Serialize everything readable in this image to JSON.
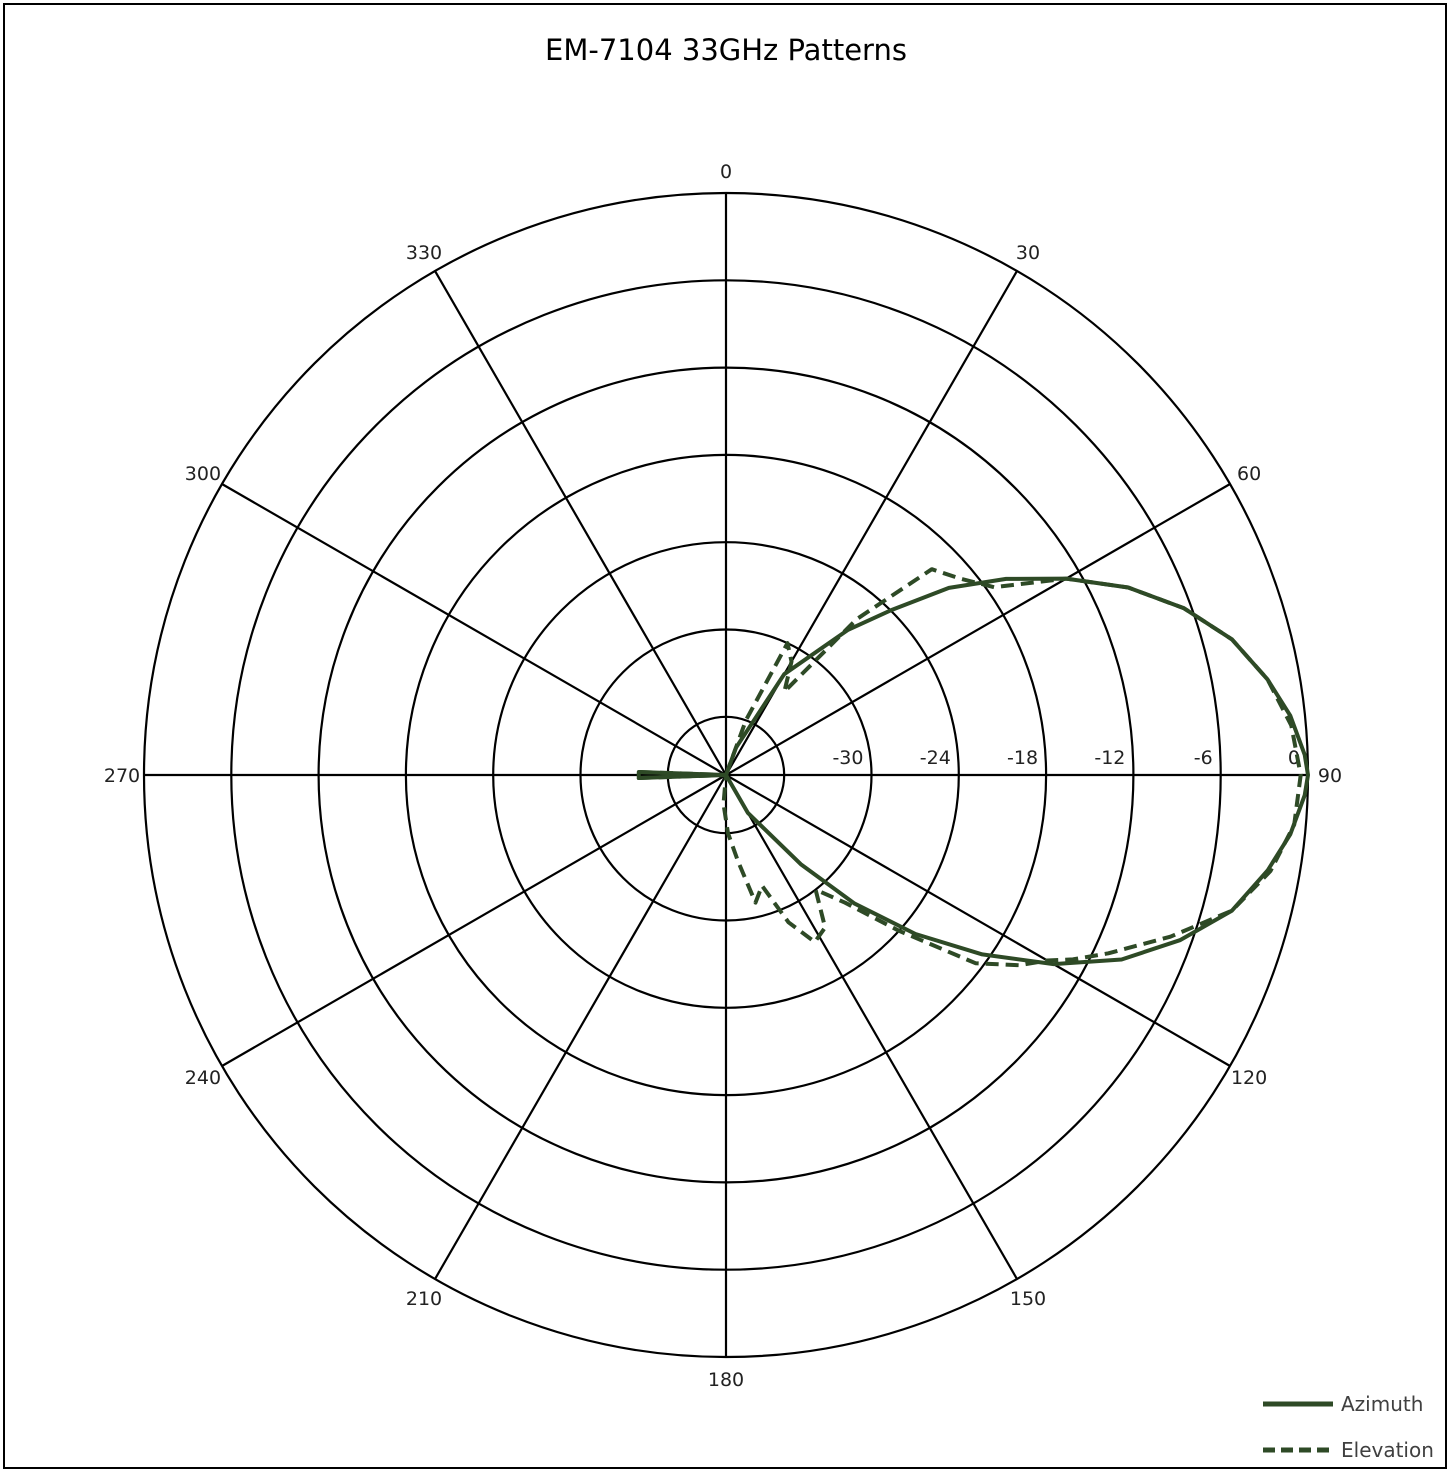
{
  "chart_data": {
    "type": "line",
    "subtype": "polar",
    "title": "EM-7104 33GHz Patterns",
    "angle_labels": [
      "0",
      "30",
      "60",
      "90",
      "120",
      "150",
      "180",
      "210",
      "240",
      "270",
      "300",
      "330"
    ],
    "radial_ticks": [
      -30,
      -24,
      -18,
      -12,
      -6,
      0
    ],
    "radial_tick_labels": [
      "-30",
      "-24",
      "-18",
      "-12",
      "-6",
      "0"
    ],
    "rlim": [
      -40,
      0
    ],
    "angle_direction": "clockwise",
    "zero_angle": "top",
    "legend_position": "bottom-right",
    "grid": true,
    "series": [
      {
        "name": "Azimuth",
        "style": "solid",
        "color": "#2e4a26",
        "points": [
          [
            0,
            -40
          ],
          [
            20,
            -38
          ],
          [
            30,
            -32
          ],
          [
            40,
            -27
          ],
          [
            45,
            -24
          ],
          [
            50,
            -20
          ],
          [
            55,
            -16.5
          ],
          [
            60,
            -13
          ],
          [
            65,
            -9.5
          ],
          [
            70,
            -6.5
          ],
          [
            75,
            -4
          ],
          [
            80,
            -2.2
          ],
          [
            84,
            -1
          ],
          [
            88,
            -0.2
          ],
          [
            90,
            0
          ],
          [
            92,
            -0.2
          ],
          [
            96,
            -1
          ],
          [
            100,
            -2.2
          ],
          [
            105,
            -4
          ],
          [
            110,
            -6.8
          ],
          [
            115,
            -10
          ],
          [
            120,
            -14
          ],
          [
            125,
            -18.5
          ],
          [
            130,
            -23
          ],
          [
            135,
            -27.5
          ],
          [
            140,
            -32
          ],
          [
            150,
            -37
          ],
          [
            160,
            -40
          ],
          [
            180,
            -40
          ],
          [
            260,
            -40
          ],
          [
            268,
            -34
          ],
          [
            270,
            -34
          ],
          [
            272,
            -34
          ],
          [
            280,
            -40
          ],
          [
            360,
            -40
          ]
        ]
      },
      {
        "name": "Elevation",
        "style": "dashed",
        "color": "#2e4a26",
        "points": [
          [
            0,
            -40
          ],
          [
            20,
            -36
          ],
          [
            25,
            -30
          ],
          [
            30,
            -31
          ],
          [
            35,
            -33
          ],
          [
            40,
            -26
          ],
          [
            45,
            -20
          ],
          [
            50,
            -19
          ],
          [
            55,
            -17.5
          ],
          [
            60,
            -13
          ],
          [
            65,
            -9.5
          ],
          [
            70,
            -6.5
          ],
          [
            75,
            -4
          ],
          [
            80,
            -2.2
          ],
          [
            85,
            -1
          ],
          [
            90,
            -0.5
          ],
          [
            95,
            -0.8
          ],
          [
            100,
            -2
          ],
          [
            105,
            -4
          ],
          [
            110,
            -7.5
          ],
          [
            115,
            -11
          ],
          [
            118,
            -13
          ],
          [
            120,
            -14.5
          ],
          [
            123,
            -16
          ],
          [
            127,
            -18.5
          ],
          [
            132,
            -24
          ],
          [
            137,
            -28
          ],
          [
            142,
            -30
          ],
          [
            147,
            -27.5
          ],
          [
            152,
            -27
          ],
          [
            157,
            -29
          ],
          [
            162,
            -32
          ],
          [
            167,
            -31
          ],
          [
            172,
            -34
          ],
          [
            178,
            -36
          ],
          [
            185,
            -38
          ],
          [
            200,
            -40
          ],
          [
            260,
            -40
          ],
          [
            268,
            -34
          ],
          [
            270,
            -34
          ],
          [
            272,
            -34
          ],
          [
            280,
            -40
          ],
          [
            360,
            -40
          ]
        ]
      }
    ]
  },
  "legend": {
    "items": [
      {
        "label": "Azimuth",
        "style": "solid"
      },
      {
        "label": "Elevation",
        "style": "dashed"
      }
    ]
  },
  "colors": {
    "series": "#2e4a26",
    "grid": "#000000"
  }
}
